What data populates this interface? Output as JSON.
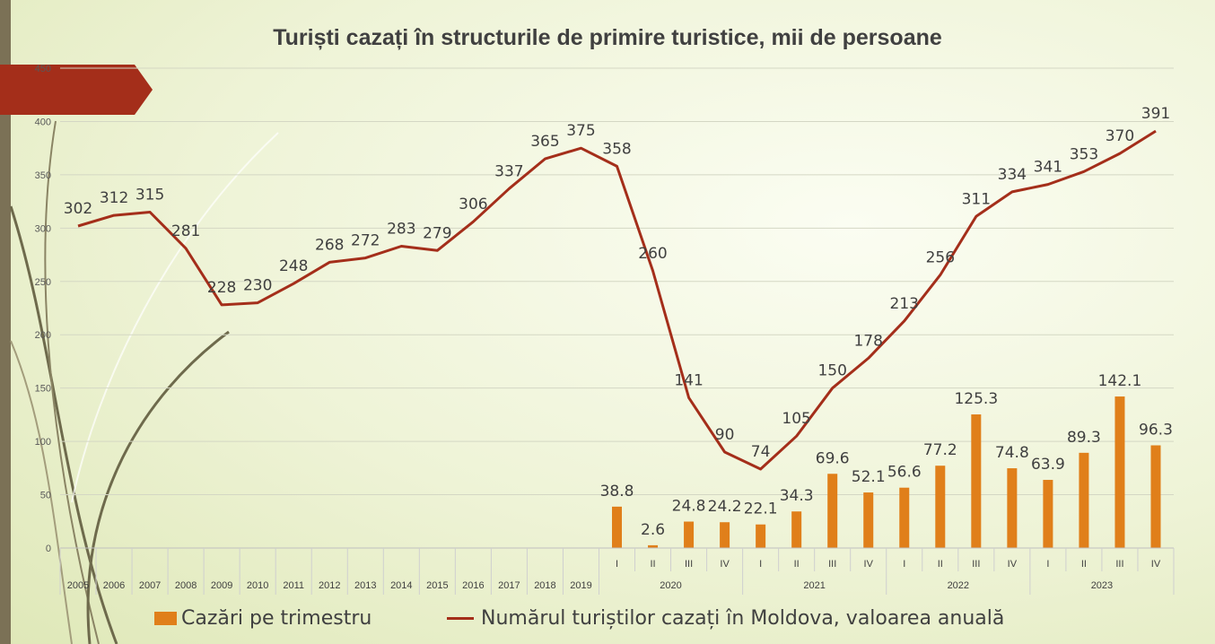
{
  "colors": {
    "bar": "#e07f1a",
    "line": "#a42e1a",
    "grid": "#d4d7c4",
    "text": "#404040",
    "accent_arrow": "#a42e1a"
  },
  "decorations": {
    "arrow_icon": "red-arrow-banner-icon",
    "swirl_icon": "decorative-swirl-lines-icon"
  },
  "chart_data": {
    "type": "bar+line",
    "title": "Turiști cazați în structurile de primire turistice, mii de persoane",
    "ylim": [
      0,
      450
    ],
    "y_ticks": [
      "0",
      "50",
      "100",
      "150",
      "200",
      "250",
      "300",
      "350",
      "400",
      "450"
    ],
    "grid": true,
    "legend_position": "bottom",
    "categories": [
      "2005",
      "2006",
      "2007",
      "2008",
      "2009",
      "2010",
      "2011",
      "2012",
      "2013",
      "2014",
      "2015",
      "2016",
      "2017",
      "2018",
      "2019",
      "I",
      "II",
      "III",
      "IV",
      "I",
      "II",
      "III",
      "IV",
      "I",
      "II",
      "III",
      "IV",
      "I",
      "II",
      "III",
      "IV"
    ],
    "year_groups": [
      {
        "label": "2020"
      },
      {
        "label": "2021"
      },
      {
        "label": "2022"
      },
      {
        "label": "2023"
      }
    ],
    "series": [
      {
        "name": "Cazări pe trimestru",
        "type": "bar",
        "values": [
          null,
          null,
          null,
          null,
          null,
          null,
          null,
          null,
          null,
          null,
          null,
          null,
          null,
          null,
          null,
          38.8,
          2.6,
          24.8,
          24.2,
          22.1,
          34.3,
          69.6,
          52.1,
          56.6,
          77.2,
          125.3,
          74.8,
          63.9,
          89.3,
          142.1,
          96.3
        ]
      },
      {
        "name": "Numărul turiștilor cazați în Moldova, valoarea anuală",
        "type": "line",
        "values": [
          302,
          312,
          315,
          281,
          228,
          230,
          248,
          268,
          272,
          283,
          279,
          306,
          337,
          365,
          375,
          358,
          260,
          141,
          90,
          74,
          105,
          150,
          178,
          213,
          256,
          311,
          334,
          341,
          353,
          370,
          391
        ]
      }
    ]
  }
}
